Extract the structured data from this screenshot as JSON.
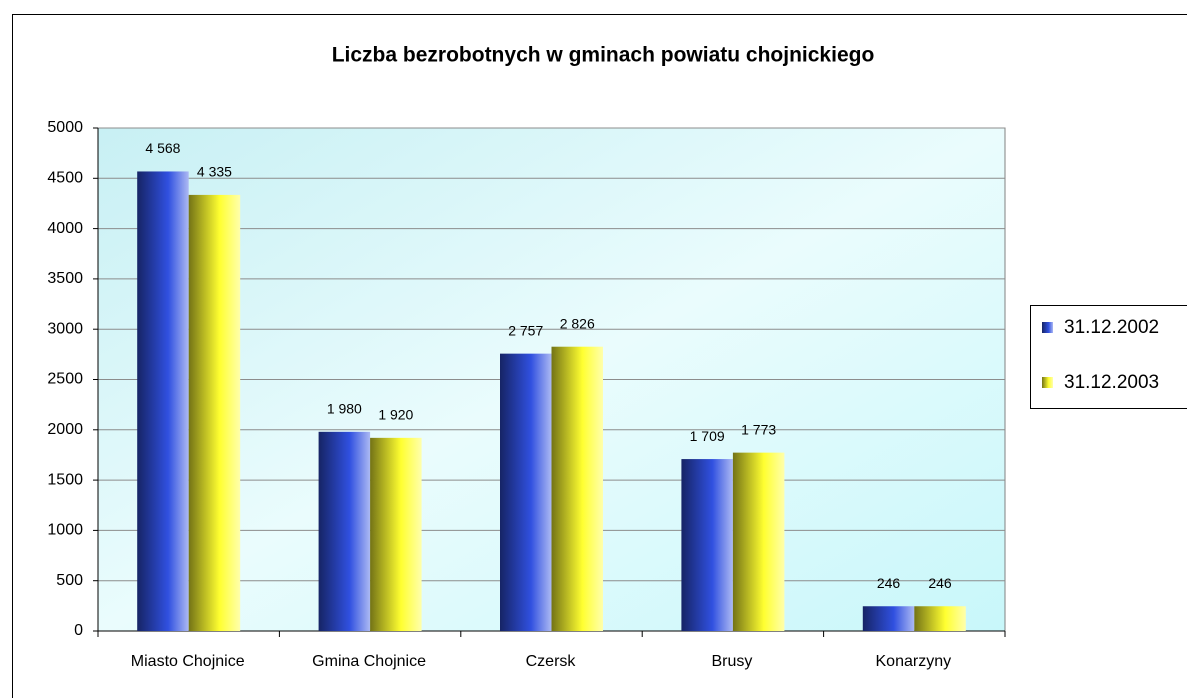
{
  "chart_data": {
    "type": "bar",
    "title": "Liczba bezrobotnych w gminach powiatu chojnickiego",
    "categories": [
      "Miasto Chojnice",
      "Gmina Chojnice",
      "Czersk",
      "Brusy",
      "Konarzyny"
    ],
    "series": [
      {
        "name": "31.12.2002",
        "color": "#3050e0",
        "values": [
          4568,
          1980,
          2757,
          1709,
          246
        ],
        "value_labels": [
          "4 568",
          "1 980",
          "2 757",
          "1 709",
          "246"
        ]
      },
      {
        "name": "31.12.2003",
        "color": "#ffff30",
        "values": [
          4335,
          1920,
          2826,
          1773,
          246
        ],
        "value_labels": [
          "4 335",
          "1 920",
          "2 826",
          "1 773",
          "246"
        ]
      }
    ],
    "ylim": [
      0,
      5000
    ],
    "yticks": [
      0,
      500,
      1000,
      1500,
      2000,
      2500,
      3000,
      3500,
      4000,
      4500,
      5000
    ],
    "grid": true,
    "legend": "right"
  }
}
